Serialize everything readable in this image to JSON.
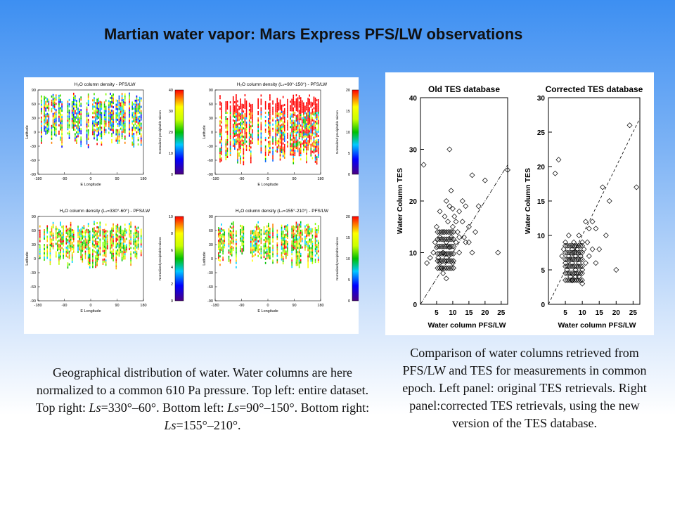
{
  "title": "Martian water vapor: Mars Express PFS/LW observations",
  "left_figure": {
    "maps": [
      {
        "title": "H₂O column density - PFS/LW",
        "colorbar_ticks": [
          "0",
          "10",
          "20",
          "30",
          "40"
        ]
      },
      {
        "title": "H₂O column density (Lₛ=90°-150°) - PFS/LW",
        "colorbar_ticks": [
          "0",
          "5",
          "10",
          "15",
          "20"
        ]
      },
      {
        "title": "H₂O column density (Lₛ=330°-60°) - PFS/LW",
        "colorbar_ticks": [
          "0",
          "2",
          "4",
          "6",
          "8",
          "10"
        ]
      },
      {
        "title": "H₂O column density (Lₛ=155°-210°) - PFS/LW",
        "colorbar_ticks": [
          "0",
          "5",
          "10",
          "15",
          "20"
        ]
      }
    ],
    "ylabel": "Latitude",
    "xlabel": "E Longitude",
    "colorbar_label": "Normalized precipitable micron",
    "lat_ticks": [
      "90",
      "60",
      "30",
      "0",
      "-30",
      "-60",
      "-90"
    ],
    "lon_ticks": [
      "-180",
      "-90",
      "0",
      "90",
      "180"
    ],
    "colors": {
      "low": "#4b0082",
      "mid": "#00c000",
      "high": "#ff0000"
    }
  },
  "chart_data": [
    {
      "type": "scatter",
      "title": "Old TES database",
      "xlabel": "Water column PFS/LW",
      "ylabel": "Water Column TES",
      "xlim": [
        0,
        27
      ],
      "ylim": [
        0,
        40
      ],
      "x_ticks": [
        "5",
        "10",
        "15",
        "20",
        "25"
      ],
      "y_ticks": [
        "0",
        "10",
        "20",
        "30",
        "40"
      ],
      "points": [
        [
          1,
          27
        ],
        [
          2,
          8
        ],
        [
          3,
          9
        ],
        [
          4,
          10
        ],
        [
          4.5,
          12
        ],
        [
          5,
          11
        ],
        [
          5,
          15
        ],
        [
          5.5,
          9
        ],
        [
          6,
          13
        ],
        [
          6,
          18
        ],
        [
          6.5,
          7
        ],
        [
          7,
          14
        ],
        [
          7,
          10
        ],
        [
          7.5,
          17
        ],
        [
          8,
          12
        ],
        [
          8,
          9
        ],
        [
          8.5,
          16
        ],
        [
          9,
          11
        ],
        [
          9,
          19
        ],
        [
          9.5,
          13
        ],
        [
          10,
          8
        ],
        [
          10,
          15
        ],
        [
          10.5,
          17
        ],
        [
          11,
          12
        ],
        [
          11.5,
          14
        ],
        [
          12,
          10
        ],
        [
          12,
          18
        ],
        [
          13,
          16
        ],
        [
          13.5,
          13
        ],
        [
          14,
          12
        ],
        [
          15,
          15
        ],
        [
          16,
          25
        ],
        [
          17,
          14
        ],
        [
          18,
          19
        ],
        [
          20,
          24
        ],
        [
          24,
          10
        ],
        [
          27,
          26
        ],
        [
          9,
          30
        ],
        [
          10,
          18.5
        ],
        [
          6,
          8
        ],
        [
          7,
          6
        ],
        [
          8,
          5
        ],
        [
          14,
          19
        ],
        [
          12,
          13
        ],
        [
          11,
          16
        ],
        [
          16,
          10
        ],
        [
          15,
          12
        ],
        [
          13,
          20
        ],
        [
          9.5,
          22
        ],
        [
          8,
          20
        ]
      ]
    },
    {
      "type": "scatter",
      "title": "Corrected TES database",
      "xlabel": "Water column PFS/LW",
      "ylabel": "Water Column TES",
      "xlim": [
        0,
        27
      ],
      "ylim": [
        0,
        30
      ],
      "x_ticks": [
        "5",
        "10",
        "15",
        "20",
        "25"
      ],
      "y_ticks": [
        "0",
        "5",
        "10",
        "15",
        "20",
        "25",
        "30"
      ],
      "points": [
        [
          2,
          19
        ],
        [
          3,
          21
        ],
        [
          4,
          7
        ],
        [
          4.5,
          8
        ],
        [
          5,
          6
        ],
        [
          5,
          9
        ],
        [
          5.5,
          5
        ],
        [
          6,
          7
        ],
        [
          6,
          10
        ],
        [
          6.5,
          4
        ],
        [
          7,
          8
        ],
        [
          7,
          6
        ],
        [
          7.5,
          9
        ],
        [
          8,
          7
        ],
        [
          8,
          5
        ],
        [
          8.5,
          8
        ],
        [
          9,
          6
        ],
        [
          9,
          10
        ],
        [
          9.5,
          7
        ],
        [
          10,
          9
        ],
        [
          10,
          5
        ],
        [
          10.5,
          8
        ],
        [
          11,
          6
        ],
        [
          11.5,
          9
        ],
        [
          12,
          7
        ],
        [
          13,
          8
        ],
        [
          14,
          6
        ],
        [
          14,
          11
        ],
        [
          15,
          8
        ],
        [
          16,
          17
        ],
        [
          17,
          10
        ],
        [
          20,
          5
        ],
        [
          24,
          26
        ],
        [
          26,
          17
        ],
        [
          18,
          15
        ],
        [
          13,
          12
        ],
        [
          12,
          11
        ],
        [
          11,
          12
        ],
        [
          8,
          4
        ],
        [
          7,
          3.5
        ],
        [
          9,
          4
        ],
        [
          10,
          3
        ]
      ]
    }
  ],
  "captions": {
    "left": [
      {
        "text": "Geographical distribution of water. Water columns are here normalized to a common 610 Pa pressure. Top left: entire dataset. Top right: "
      },
      {
        "italic": "Ls"
      },
      {
        "text": "=330°–60°. Bottom left: "
      },
      {
        "italic": "Ls"
      },
      {
        "text": "=90°–150°. Bottom right: "
      },
      {
        "italic": "Ls"
      },
      {
        "text": "=155°–210°."
      }
    ],
    "right": "Comparison of water columns retrieved from PFS/LW and TES for measurements in common epoch. Left panel: original TES retrievals. Right panel:corrected TES retrievals, using the new version of the TES database."
  }
}
